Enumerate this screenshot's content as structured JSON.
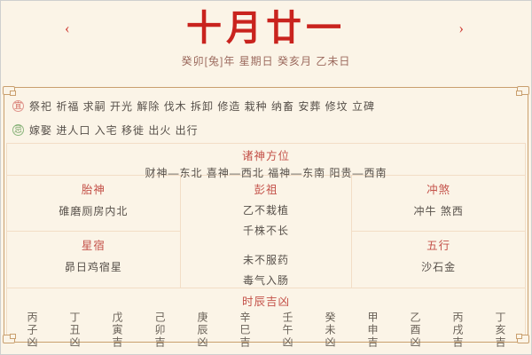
{
  "header": {
    "prev_arrow": "‹",
    "next_arrow": "›",
    "title": "十月廿一",
    "subtitle": "癸卯[兔]年 星期日 癸亥月 乙未日"
  },
  "suitable": {
    "icon_label": "宜",
    "items": "祭祀 祈福 求嗣 开光 解除 伐木 拆卸 修造 栽种 纳畜 安葬 修坟 立碑"
  },
  "avoid": {
    "icon_label": "忌",
    "items": "嫁娶 进人口 入宅 移徙 出火 出行"
  },
  "gods_direction": {
    "title": "诸神方位",
    "content": "财神—东北 喜神—西北 福神—东南 阳贵—西南"
  },
  "grid": {
    "taishen": {
      "title": "胎神",
      "content": "碓磨厕房内北"
    },
    "pengzu": {
      "title": "彭祖",
      "lines": [
        "乙不栽植",
        "千株不长",
        "未不服药",
        "毒气入肠"
      ]
    },
    "chongsha": {
      "title": "冲煞",
      "content": "冲牛 煞西"
    },
    "xingxiu": {
      "title": "星宿",
      "content": "昴日鸡宿星"
    },
    "wuxing": {
      "title": "五行",
      "content": "沙石金"
    }
  },
  "hours": {
    "title": "时辰吉凶",
    "items": [
      "丙子凶",
      "丁丑凶",
      "戊寅吉",
      "己卯吉",
      "庚辰凶",
      "辛巳吉",
      "壬午凶",
      "癸未凶",
      "甲申吉",
      "乙酉凶",
      "丙戌吉",
      "丁亥吉"
    ]
  },
  "colors": {
    "background": "#fbf4e7",
    "title_red": "#c9231e",
    "section_title_red": "#c4524a",
    "subtitle_brown": "#9c6a5e",
    "body_text": "#57504a",
    "panel_border": "#c99f6e",
    "table_border": "#f2ddc6",
    "suitable_badge": "#d0635a",
    "avoid_badge": "#6f9e5f"
  }
}
